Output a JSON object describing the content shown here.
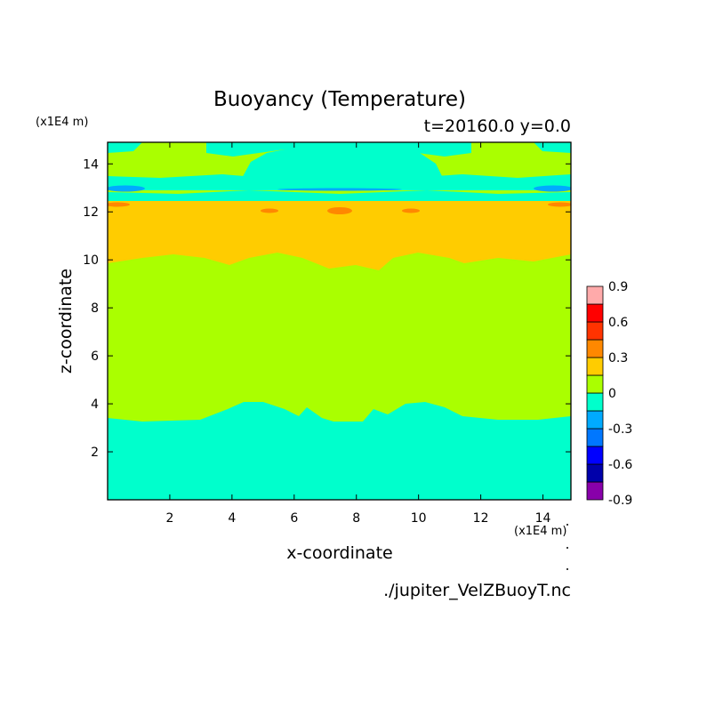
{
  "chart_data": {
    "type": "heatmap",
    "title": "Buoyancy (Temperature)",
    "subtitle": "t=20160.0 y=0.0",
    "xlabel": "x-coordinate",
    "ylabel": "z-coordinate",
    "x_unit": "(x1E4 m)",
    "y_unit": "(x1E4 m)",
    "source_file": "./jupiter_VelZBuoyT.nc",
    "xlim": [
      0,
      14.9
    ],
    "ylim": [
      0,
      14.9
    ],
    "x_ticks": [
      "2",
      "4",
      "6",
      "8",
      "10",
      "12",
      "14"
    ],
    "y_ticks": [
      "2",
      "4",
      "6",
      "8",
      "10",
      "12",
      "14"
    ],
    "colorbar": {
      "levels": [
        -0.9,
        -0.75,
        -0.6,
        -0.45,
        -0.3,
        -0.15,
        0,
        0.15,
        0.3,
        0.45,
        0.6,
        0.75,
        0.9
      ],
      "tick_labels": [
        "0.9",
        "0.6",
        "0.3",
        "0",
        "-0.3",
        "-0.6",
        "-0.9"
      ],
      "colors": [
        "#8800aa",
        "#0000aa",
        "#0000ff",
        "#0077ff",
        "#00aaff",
        "#00ffcc",
        "#aaff00",
        "#ffcc00",
        "#ff8800",
        "#ff3300",
        "#ff0000",
        "#ffaaaa"
      ]
    },
    "bands": [
      {
        "z_range": [
          0,
          3.5
        ],
        "value_range": [
          -0.15,
          0
        ],
        "color": "#00ffcc"
      },
      {
        "z_range": [
          3.5,
          10.2
        ],
        "value_range": [
          0,
          0.15
        ],
        "color": "#aaff00"
      },
      {
        "z_range": [
          10.2,
          12.6
        ],
        "value_range": [
          0.15,
          0.3
        ],
        "color": "#ffcc00"
      },
      {
        "z_range": [
          12.6,
          13.2
        ],
        "value_range": [
          -0.3,
          -0.15
        ],
        "color": "#00aaff"
      },
      {
        "z_range": [
          13.2,
          14.9
        ],
        "value_range": [
          -0.15,
          0.15
        ],
        "color": "#aaff00"
      }
    ]
  }
}
